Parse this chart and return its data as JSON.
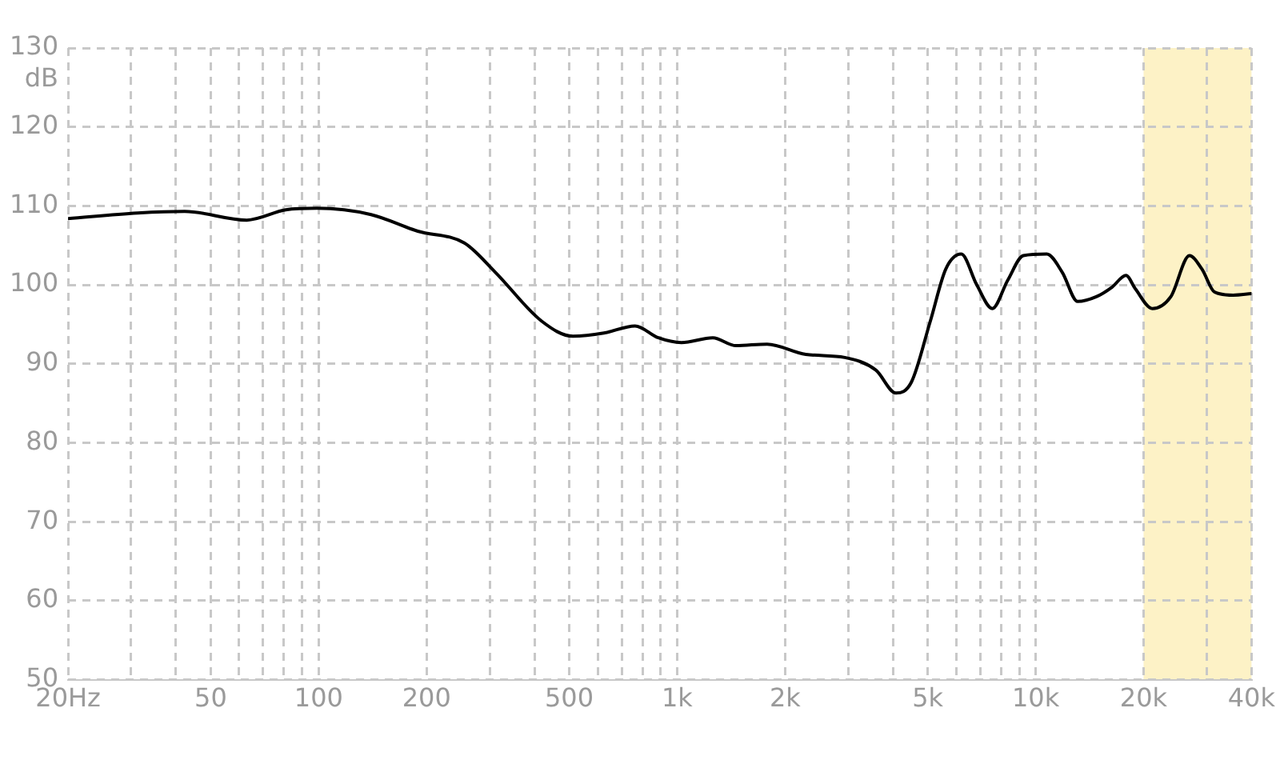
{
  "chart_data": {
    "type": "line",
    "ylabel": "dB",
    "x": [
      20,
      31.3,
      42.3,
      63,
      81,
      99,
      140,
      189,
      255,
      311,
      419,
      512,
      625,
      763,
      886,
      1028,
      1257,
      1460,
      1782,
      2285,
      2935,
      3584,
      4076,
      4504,
      5083,
      5614,
      6200,
      6850,
      7570,
      8360,
      9240,
      10740,
      11860,
      13100,
      14760,
      16320,
      17860,
      18970,
      21160,
      23820,
      26860,
      29100,
      31540,
      35560,
      40000
    ],
    "series": [
      {
        "color": "#000000",
        "values": [
          108.4,
          109.1,
          109.3,
          108.2,
          109.5,
          109.7,
          108.9,
          106.8,
          105.3,
          101.6,
          95.4,
          93.5,
          93.9,
          94.8,
          93.3,
          92.7,
          93.3,
          92.3,
          92.5,
          91.2,
          90.8,
          89.2,
          86.3,
          87.7,
          95.4,
          102,
          103.9,
          100,
          97,
          100.6,
          103.7,
          103.9,
          101.6,
          97.9,
          98.5,
          99.7,
          101.2,
          99.5,
          97,
          98.5,
          103.7,
          102,
          99.1,
          98.7,
          98.9
        ]
      }
    ],
    "log": "x",
    "xlim": [
      20,
      40000
    ],
    "xticks": [
      {
        "value": 20,
        "label": "20Hz"
      },
      {
        "value": 30,
        "label": null
      },
      {
        "value": 40,
        "label": null
      },
      {
        "value": 50,
        "label": "50"
      },
      {
        "value": 60,
        "label": null
      },
      {
        "value": 70,
        "label": null
      },
      {
        "value": 80,
        "label": null
      },
      {
        "value": 90,
        "label": null
      },
      {
        "value": 100,
        "label": "100"
      },
      {
        "value": 200,
        "label": "200"
      },
      {
        "value": 300,
        "label": null
      },
      {
        "value": 400,
        "label": null
      },
      {
        "value": 500,
        "label": "500"
      },
      {
        "value": 600,
        "label": null
      },
      {
        "value": 700,
        "label": null
      },
      {
        "value": 800,
        "label": null
      },
      {
        "value": 900,
        "label": null
      },
      {
        "value": 1000,
        "label": "1k"
      },
      {
        "value": 2000,
        "label": "2k"
      },
      {
        "value": 3000,
        "label": null
      },
      {
        "value": 4000,
        "label": null
      },
      {
        "value": 5000,
        "label": "5k"
      },
      {
        "value": 6000,
        "label": null
      },
      {
        "value": 7000,
        "label": null
      },
      {
        "value": 8000,
        "label": null
      },
      {
        "value": 9000,
        "label": null
      },
      {
        "value": 10000,
        "label": "10k"
      },
      {
        "value": 20000,
        "label": "20k"
      },
      {
        "value": 30000,
        "label": null
      },
      {
        "value": 40000,
        "label": "40k"
      }
    ],
    "ylim": [
      50,
      130
    ],
    "yticks": [
      50,
      60,
      70,
      80,
      90,
      100,
      110,
      120,
      130
    ],
    "grid": true,
    "legend": false,
    "marker": "none",
    "line_style": "solid",
    "bands": [
      {
        "axis": "x",
        "from": 20000,
        "to": 40000,
        "color": "#fdf2c6"
      }
    ]
  }
}
